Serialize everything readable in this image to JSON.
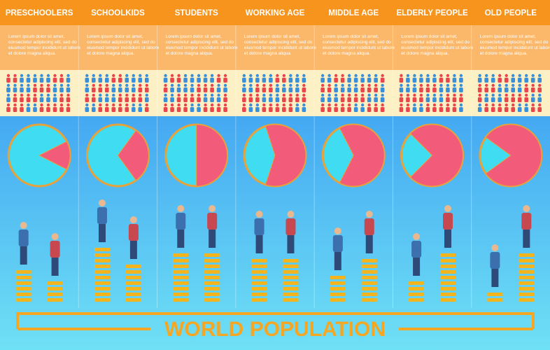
{
  "title": "WORLD POPULATION",
  "groups": [
    {
      "label": "PRESCHOOLERS",
      "text": "Lorem ipsum dolor sit amet, consectetur adipiscing elit, sed do eiusmod tempor incididunt ut labore et dolore magna aliqua.",
      "pie_share": 15,
      "stacks": [
        6,
        4
      ]
    },
    {
      "label": "SCHOOLKIDS",
      "text": "Lorem ipsum dolor sit amet, consectetur adipiscing elit, sed do eiusmod tempor incididunt ut labore et dolore magna aliqua.",
      "pie_share": 30,
      "stacks": [
        10,
        7
      ]
    },
    {
      "label": "STUDENTS",
      "text": "Lorem ipsum dolor sit amet, consectetur adipiscing elit, sed do eiusmod tempor incididunt ut labore et dolore magna aliqua.",
      "pie_share": 50,
      "stacks": [
        9,
        9
      ]
    },
    {
      "label": "WORKING AGE",
      "text": "Lorem ipsum dolor sit amet, consectetur adipiscing elit, sed do eiusmod tempor incididunt ut labore et dolore magna aliqua.",
      "pie_share": 60,
      "stacks": [
        8,
        8
      ]
    },
    {
      "label": "MIDDLE AGE",
      "text": "Lorem ipsum dolor sit amet, consectetur adipiscing elit, sed do eiusmod tempor incididunt ut labore et dolore magna aliqua.",
      "pie_share": 65,
      "stacks": [
        5,
        8
      ]
    },
    {
      "label": "ELDERLY PEOPLE",
      "text": "Lorem ipsum dolor sit amet, consectetur adipiscing elit, sed do eiusmod tempor incididunt ut labore et dolore magna aliqua.",
      "pie_share": 75,
      "stacks": [
        4,
        9
      ]
    },
    {
      "label": "OLD PEOPLE",
      "text": "Lorem ipsum dolor sit amet, consectetur adipiscing elit, sed do eiusmod tempor incididunt ut labore et dolore magna aliqua.",
      "pie_share": 80,
      "stacks": [
        2,
        9
      ]
    }
  ]
}
